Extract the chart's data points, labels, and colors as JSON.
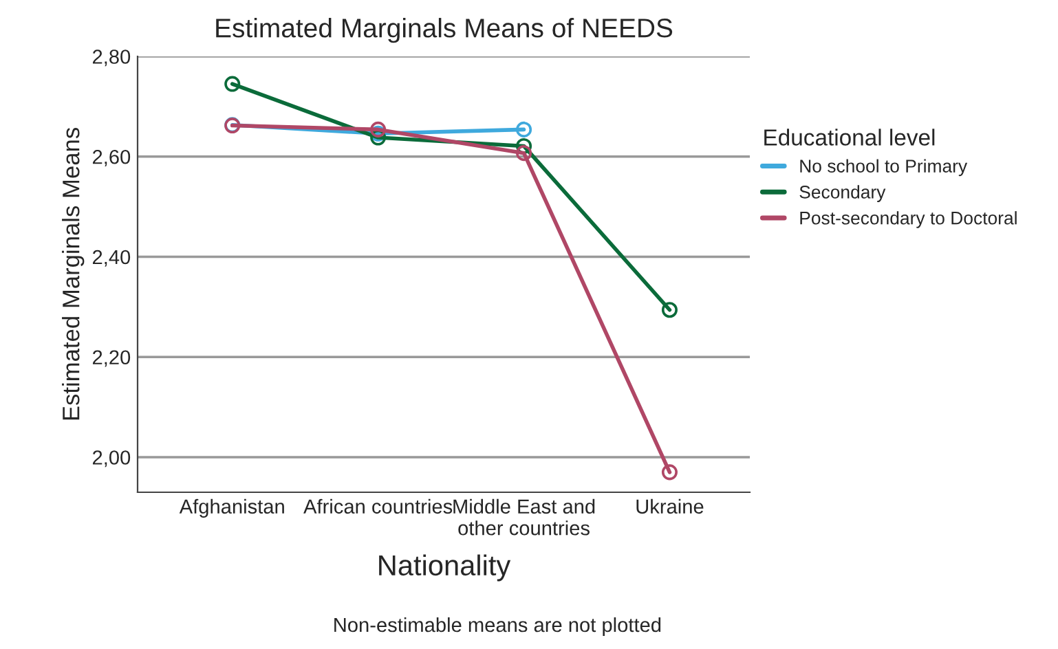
{
  "chart_data": {
    "type": "line",
    "title": "Estimated Marginals Means of NEEDS",
    "xlabel": "Nationality",
    "ylabel": "Estimated Marginals Means",
    "legend_title": "Educational level",
    "categories": [
      "Afghanistan",
      "African countries",
      "Middle East and\nother countries",
      "Ukraine"
    ],
    "series": [
      {
        "name": "No school to Primary",
        "color": "#3fa9dd",
        "values": [
          2.663,
          2.646,
          2.654,
          null
        ]
      },
      {
        "name": "Secondary",
        "color": "#0b6b3a",
        "values": [
          2.745,
          2.638,
          2.621,
          2.294
        ]
      },
      {
        "name": "Post-secondary to Doctoral",
        "color": "#b04766",
        "values": [
          2.662,
          2.654,
          2.607,
          1.97
        ]
      }
    ],
    "ylim": [
      1.93,
      2.8
    ],
    "yticks": [
      {
        "value": 2.0,
        "label": "2,00"
      },
      {
        "value": 2.2,
        "label": "2,20"
      },
      {
        "value": 2.4,
        "label": "2,40"
      },
      {
        "value": 2.6,
        "label": "2,60"
      },
      {
        "value": 2.8,
        "label": "2,80"
      }
    ],
    "grid": "y",
    "legend": "right",
    "marker": "circle",
    "line_style": "solid",
    "annotations": [
      "Non-estimable means are not plotted"
    ]
  }
}
